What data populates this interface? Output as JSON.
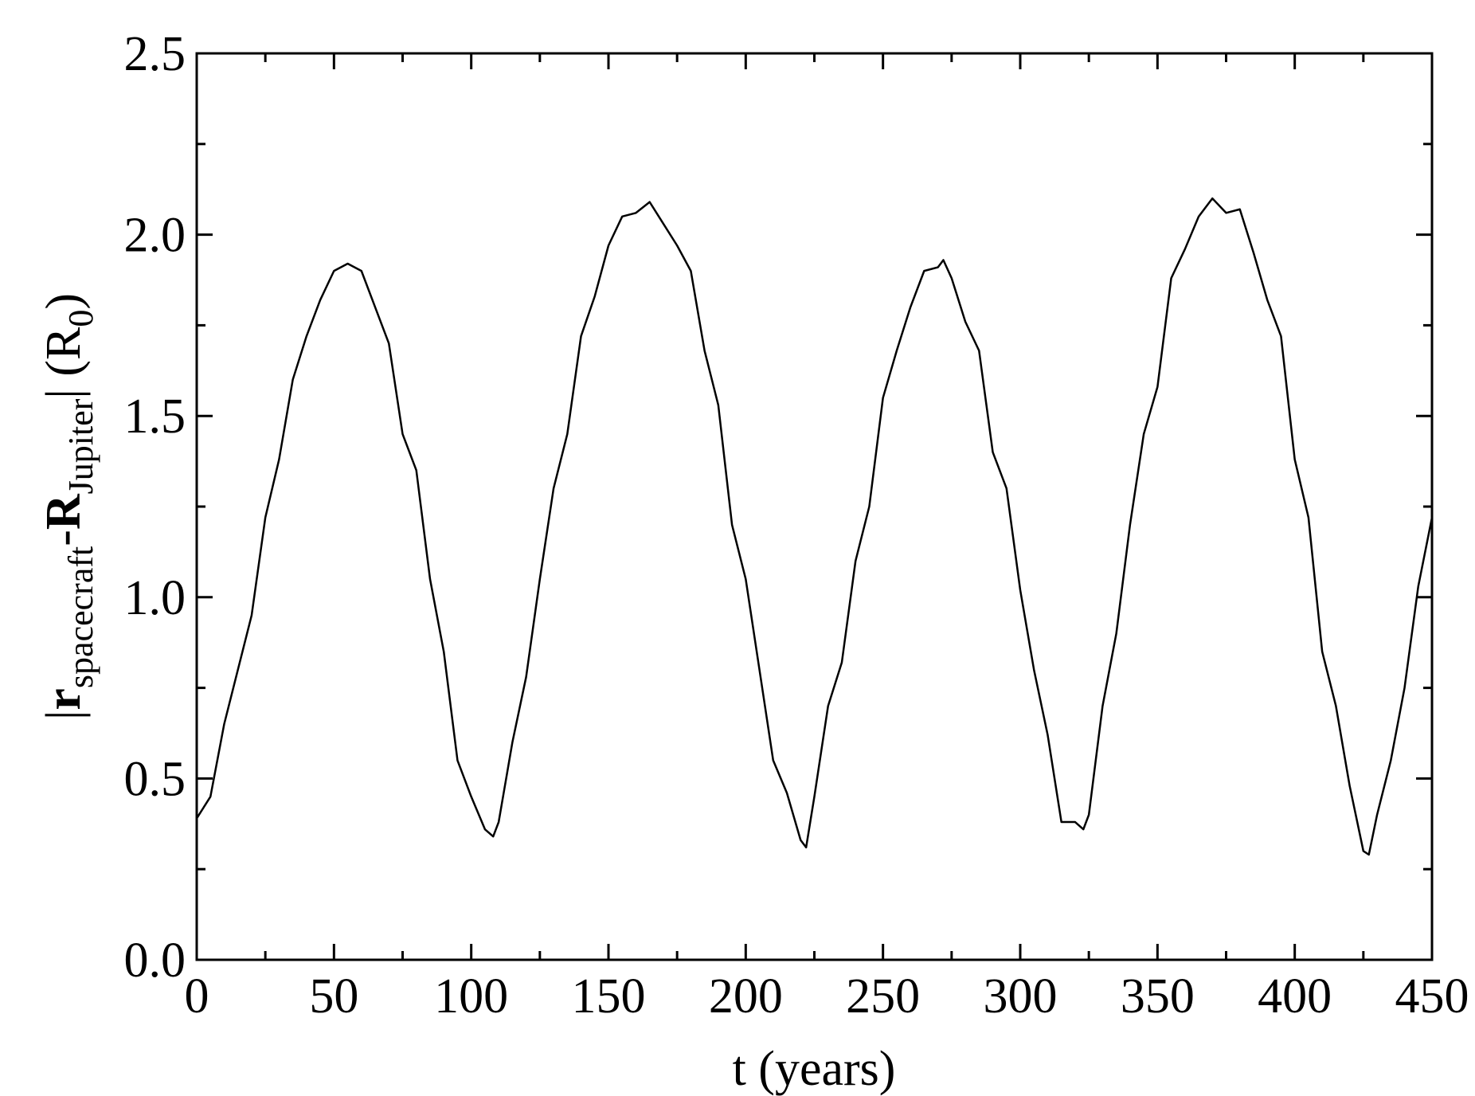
{
  "chart_data": {
    "type": "line",
    "xlabel": "t (years)",
    "ylabel_parts": [
      "|",
      "r",
      "spacecraft",
      "-",
      "R",
      "Jupiter",
      "| (R",
      "0",
      ")"
    ],
    "x": [
      0,
      5,
      10,
      15,
      20,
      25,
      30,
      35,
      40,
      45,
      50,
      55,
      60,
      65,
      70,
      75,
      80,
      85,
      90,
      95,
      100,
      105,
      108,
      110,
      115,
      120,
      125,
      130,
      135,
      140,
      145,
      150,
      155,
      160,
      165,
      170,
      175,
      180,
      185,
      190,
      195,
      200,
      205,
      210,
      215,
      220,
      222,
      225,
      230,
      235,
      240,
      245,
      250,
      255,
      260,
      265,
      270,
      272,
      275,
      280,
      285,
      290,
      295,
      300,
      305,
      310,
      315,
      320,
      323,
      325,
      330,
      335,
      340,
      345,
      350,
      355,
      360,
      365,
      370,
      375,
      380,
      385,
      390,
      395,
      400,
      405,
      410,
      415,
      420,
      425,
      427,
      430,
      435,
      440,
      445,
      450
    ],
    "series": [
      {
        "color": "#000000",
        "values": [
          0.39,
          0.45,
          0.65,
          0.8,
          0.95,
          1.22,
          1.38,
          1.6,
          1.72,
          1.82,
          1.9,
          1.92,
          1.9,
          1.8,
          1.7,
          1.45,
          1.35,
          1.05,
          0.85,
          0.55,
          0.45,
          0.36,
          0.34,
          0.38,
          0.6,
          0.78,
          1.05,
          1.3,
          1.45,
          1.72,
          1.83,
          1.97,
          2.05,
          2.06,
          2.09,
          2.03,
          1.97,
          1.9,
          1.68,
          1.53,
          1.2,
          1.05,
          0.8,
          0.55,
          0.46,
          0.33,
          0.31,
          0.45,
          0.7,
          0.82,
          1.1,
          1.25,
          1.55,
          1.68,
          1.8,
          1.9,
          1.91,
          1.93,
          1.88,
          1.76,
          1.68,
          1.4,
          1.3,
          1.02,
          0.8,
          0.62,
          0.38,
          0.38,
          0.36,
          0.4,
          0.7,
          0.9,
          1.2,
          1.45,
          1.58,
          1.88,
          1.96,
          2.05,
          2.1,
          2.06,
          2.07,
          1.95,
          1.82,
          1.72,
          1.38,
          1.22,
          0.85,
          0.7,
          0.48,
          0.3,
          0.29,
          0.4,
          0.55,
          0.75,
          1.03,
          1.22
        ]
      }
    ],
    "xlim": [
      0,
      450
    ],
    "ylim": [
      0,
      2.5
    ],
    "xticks": [
      0,
      50,
      100,
      150,
      200,
      250,
      300,
      350,
      400,
      450
    ],
    "yticks": [
      {
        "value": 0,
        "label": "0.0"
      },
      0.5,
      {
        "value": 1,
        "label": "1.0"
      },
      1.5,
      {
        "value": 2,
        "label": "2.0"
      },
      2.5
    ],
    "xminorticks": [
      25,
      75,
      125,
      175,
      225,
      275,
      325,
      375,
      425
    ],
    "yminorticks": [
      0.25,
      0.75,
      1.25,
      1.75,
      2.25
    ]
  }
}
